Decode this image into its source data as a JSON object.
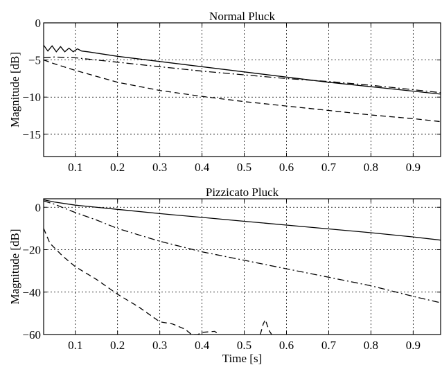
{
  "chart_data": [
    {
      "type": "line",
      "title": "Normal Pluck",
      "xlabel": "",
      "ylabel": "Magnitude [dB]",
      "xlim": [
        0.025,
        0.965
      ],
      "ylim": [
        -18,
        0
      ],
      "xticks": [
        0.1,
        0.2,
        0.3,
        0.4,
        0.5,
        0.6,
        0.7,
        0.8,
        0.9
      ],
      "xticklabels": [
        "0.1",
        "0.2",
        "0.3",
        "0.4",
        "0.5",
        "0.6",
        "0.7",
        "0.8",
        "0.9"
      ],
      "yticks": [
        0,
        -5,
        -10,
        -15
      ],
      "yticklabels": [
        "0",
        "−5",
        "−10",
        "−15"
      ],
      "grid": true,
      "series": [
        {
          "style": "solid",
          "x": [
            0.025,
            0.035,
            0.045,
            0.055,
            0.065,
            0.075,
            0.085,
            0.095,
            0.105,
            0.115,
            0.13,
            0.2,
            0.3,
            0.4,
            0.5,
            0.6,
            0.7,
            0.8,
            0.9,
            0.965
          ],
          "y": [
            -3.0,
            -3.8,
            -3.1,
            -3.9,
            -3.2,
            -3.9,
            -3.4,
            -3.9,
            -3.5,
            -3.8,
            -3.9,
            -4.5,
            -5.2,
            -5.9,
            -6.6,
            -7.3,
            -8.0,
            -8.6,
            -9.2,
            -9.6
          ]
        },
        {
          "style": "dashdot",
          "x": [
            0.025,
            0.05,
            0.1,
            0.15,
            0.2,
            0.3,
            0.4,
            0.5,
            0.6,
            0.7,
            0.8,
            0.9,
            0.965
          ],
          "y": [
            -4.7,
            -4.6,
            -4.7,
            -5.0,
            -5.3,
            -5.9,
            -6.5,
            -7.0,
            -7.5,
            -7.9,
            -8.4,
            -9.0,
            -9.4
          ]
        },
        {
          "style": "dashed",
          "x": [
            0.025,
            0.05,
            0.1,
            0.15,
            0.2,
            0.3,
            0.4,
            0.5,
            0.6,
            0.7,
            0.8,
            0.9,
            0.965
          ],
          "y": [
            -5.0,
            -5.5,
            -6.4,
            -7.2,
            -8.0,
            -9.1,
            -9.9,
            -10.6,
            -11.2,
            -11.8,
            -12.4,
            -12.9,
            -13.3
          ]
        }
      ]
    },
    {
      "type": "line",
      "title": "Pizzicato Pluck",
      "xlabel": "Time [s]",
      "ylabel": "Magnitude [dB]",
      "xlim": [
        0.025,
        0.965
      ],
      "ylim": [
        -60,
        4
      ],
      "xticks": [
        0.1,
        0.2,
        0.3,
        0.4,
        0.5,
        0.6,
        0.7,
        0.8,
        0.9
      ],
      "xticklabels": [
        "0.1",
        "0.2",
        "0.3",
        "0.4",
        "0.5",
        "0.6",
        "0.7",
        "0.8",
        "0.9"
      ],
      "yticks": [
        0,
        -20,
        -40,
        -60
      ],
      "yticklabels": [
        "0",
        "−20",
        "−40",
        "−60"
      ],
      "grid": true,
      "series": [
        {
          "style": "solid",
          "x": [
            0.025,
            0.05,
            0.1,
            0.2,
            0.3,
            0.4,
            0.5,
            0.6,
            0.7,
            0.8,
            0.9,
            0.965
          ],
          "y": [
            3.5,
            2.5,
            1.0,
            -1.0,
            -3.0,
            -4.8,
            -6.6,
            -8.4,
            -10.2,
            -12.0,
            -14.0,
            -15.5
          ]
        },
        {
          "style": "dashdot",
          "x": [
            0.025,
            0.05,
            0.1,
            0.15,
            0.2,
            0.3,
            0.4,
            0.5,
            0.6,
            0.7,
            0.8,
            0.9,
            0.965
          ],
          "y": [
            3.0,
            1.5,
            -2.5,
            -6.0,
            -10.0,
            -16.0,
            -21.0,
            -25.0,
            -29.0,
            -33.0,
            -37.0,
            -42.0,
            -45.0
          ]
        },
        {
          "style": "dashed",
          "x": [
            0.025,
            0.04,
            0.05,
            0.07,
            0.1,
            0.15,
            0.2,
            0.25,
            0.3,
            0.33,
            0.36,
            0.375,
            0.38,
            0.39,
            0.4,
            0.43,
            0.44
          ],
          "y": [
            -10.0,
            -17.0,
            -19.0,
            -23.0,
            -28.0,
            -34.0,
            -41.0,
            -47.0,
            -54.0,
            -55.0,
            -57.5,
            -60.0,
            -60.0,
            -60.0,
            -59.0,
            -58.5,
            -60.0
          ]
        },
        {
          "style": "dashed",
          "x": [
            0.538,
            0.545,
            0.55,
            0.555,
            0.56,
            0.565
          ],
          "y": [
            -60.0,
            -55.0,
            -53.0,
            -56.0,
            -58.5,
            -60.0
          ]
        }
      ]
    }
  ]
}
